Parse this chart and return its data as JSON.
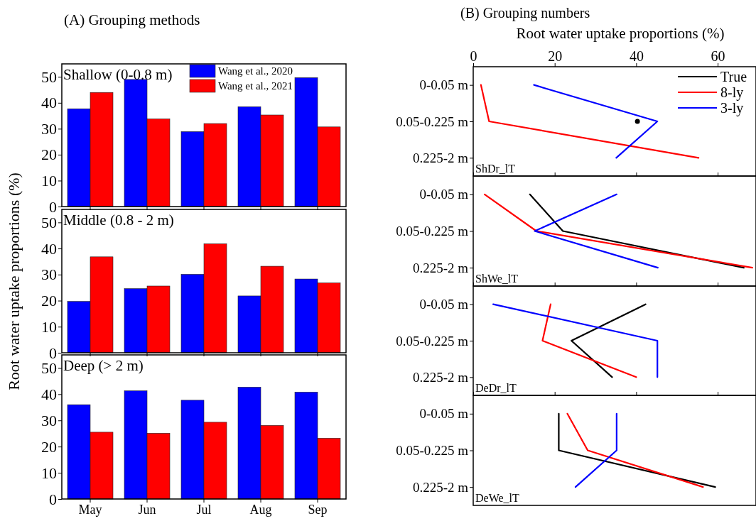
{
  "chart_data": [
    {
      "type": "bar",
      "title": "(A) Grouping methods",
      "annotations": [
        "Shallow (0-0.8 m)"
      ],
      "categories": [
        null,
        null,
        null,
        null,
        null
      ],
      "ylim": [
        0,
        55
      ],
      "yticks": [
        0,
        10,
        20,
        30,
        40,
        50
      ],
      "tick_labels": "y",
      "legend": "top right",
      "series": [
        {
          "name": "Wang et al., 2020",
          "color": "#0000ff",
          "values": [
            37.7,
            49.0,
            28.9,
            38.5,
            49.7
          ]
        },
        {
          "name": "Wang et al., 2021",
          "color": "#ff0000",
          "values": [
            44.0,
            33.8,
            32.0,
            35.3,
            30.7
          ]
        }
      ]
    },
    {
      "type": "bar",
      "annotations": [
        "Middle (0.8 - 2 m)"
      ],
      "ylabel": "Root water uptake proportions (%)",
      "categories": [
        null,
        null,
        null,
        null,
        null
      ],
      "ylim": [
        0,
        55
      ],
      "yticks": [
        0,
        10,
        20,
        30,
        40,
        50
      ],
      "tick_labels": "y",
      "series": [
        {
          "color": "#0000ff",
          "values": [
            19.7,
            24.6,
            30.1,
            21.8,
            28.3
          ]
        },
        {
          "color": "#ff0000",
          "values": [
            36.8,
            25.6,
            41.8,
            33.2,
            26.8
          ]
        }
      ]
    },
    {
      "type": "bar",
      "annotations": [
        "Deep (> 2 m)"
      ],
      "categories": [
        "May",
        "Jun",
        "Jul",
        "Aug",
        "Sep"
      ],
      "ylim": [
        0,
        55
      ],
      "yticks": [
        0,
        10,
        20,
        30,
        40,
        50
      ],
      "series": [
        {
          "color": "#0000ff",
          "values": [
            36.0,
            41.3,
            37.7,
            42.7,
            40.8
          ]
        },
        {
          "color": "#ff0000",
          "values": [
            25.5,
            25.1,
            29.3,
            28.1,
            23.2
          ]
        }
      ]
    },
    {
      "type": "line",
      "orientation": "horizontal",
      "title": "(B) Grouping numbers",
      "xlabel": "Root water uptake proportions (%)",
      "annotations": [
        "ShDr_lT"
      ],
      "categories": [
        "0-0.05 m",
        "0.05-0.225 m",
        "0.225-2 m"
      ],
      "xlim": [
        0,
        69.4
      ],
      "xticks": [
        0,
        20,
        40,
        60
      ],
      "legend": "top right",
      "series": [
        {
          "name": "True",
          "color": "#000000",
          "values": [
            null,
            40.3,
            null
          ],
          "marker": "circle"
        },
        {
          "name": "8-ly",
          "color": "#ff0000",
          "values": [
            1.9,
            3.9,
            55.3
          ]
        },
        {
          "name": "3-ly",
          "color": "#0000ff",
          "values": [
            14.9,
            45.2,
            35.1
          ]
        }
      ]
    },
    {
      "type": "line",
      "orientation": "horizontal",
      "annotations": [
        "ShWe_lT"
      ],
      "categories": [
        "0-0.05 m",
        "0.05-0.225 m",
        "0.225-2 m"
      ],
      "xlim": [
        0,
        69.4
      ],
      "xticks": [
        0,
        20,
        40,
        60
      ],
      "tick_labels": "y",
      "series": [
        {
          "color": "#000000",
          "values": [
            13.9,
            22.0,
            66.4
          ]
        },
        {
          "color": "#ff0000",
          "values": [
            2.8,
            15.5,
            68.5
          ]
        },
        {
          "color": "#0000ff",
          "values": [
            35.2,
            15.1,
            45.3
          ]
        }
      ]
    },
    {
      "type": "line",
      "orientation": "horizontal",
      "annotations": [
        "DeDr_lT"
      ],
      "categories": [
        "0-0.05 m",
        "0.05-0.225 m",
        "0.225-2 m"
      ],
      "xlim": [
        0,
        69.4
      ],
      "xticks": [
        0,
        20,
        40,
        60
      ],
      "tick_labels": "y",
      "series": [
        {
          "color": "#000000",
          "values": [
            42.3,
            24.1,
            34.1
          ]
        },
        {
          "color": "#ff0000",
          "values": [
            19.0,
            17.0,
            40.0
          ]
        },
        {
          "color": "#0000ff",
          "values": [
            4.9,
            45.2,
            45.2
          ]
        }
      ]
    },
    {
      "type": "line",
      "orientation": "horizontal",
      "annotations": [
        "DeWe_lT"
      ],
      "categories": [
        "0-0.05 m",
        "0.05-0.225 m",
        "0.225-2 m"
      ],
      "xlim": [
        0,
        69.4
      ],
      "xticks": [
        0,
        20,
        40,
        60
      ],
      "tick_labels": "y",
      "series": [
        {
          "color": "#000000",
          "values": [
            21.0,
            21.0,
            59.4
          ]
        },
        {
          "color": "#ff0000",
          "values": [
            23.1,
            28.1,
            56.4
          ]
        },
        {
          "color": "#0000ff",
          "values": [
            35.2,
            35.2,
            25.1
          ]
        }
      ]
    }
  ]
}
